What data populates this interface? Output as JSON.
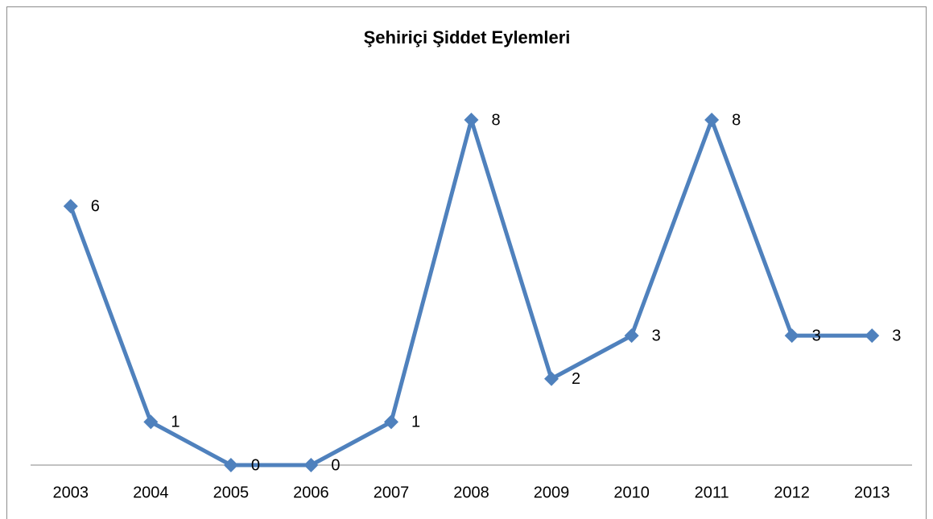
{
  "chart_data": {
    "type": "line",
    "title": "Şehiriçi Şiddet Eylemleri",
    "categories": [
      "2003",
      "2004",
      "2005",
      "2006",
      "2007",
      "2008",
      "2009",
      "2010",
      "2011",
      "2012",
      "2013"
    ],
    "values": [
      6,
      1,
      0,
      0,
      1,
      8,
      2,
      3,
      8,
      3,
      3
    ],
    "color": "#4f81bd",
    "ylim": [
      0,
      8
    ]
  }
}
